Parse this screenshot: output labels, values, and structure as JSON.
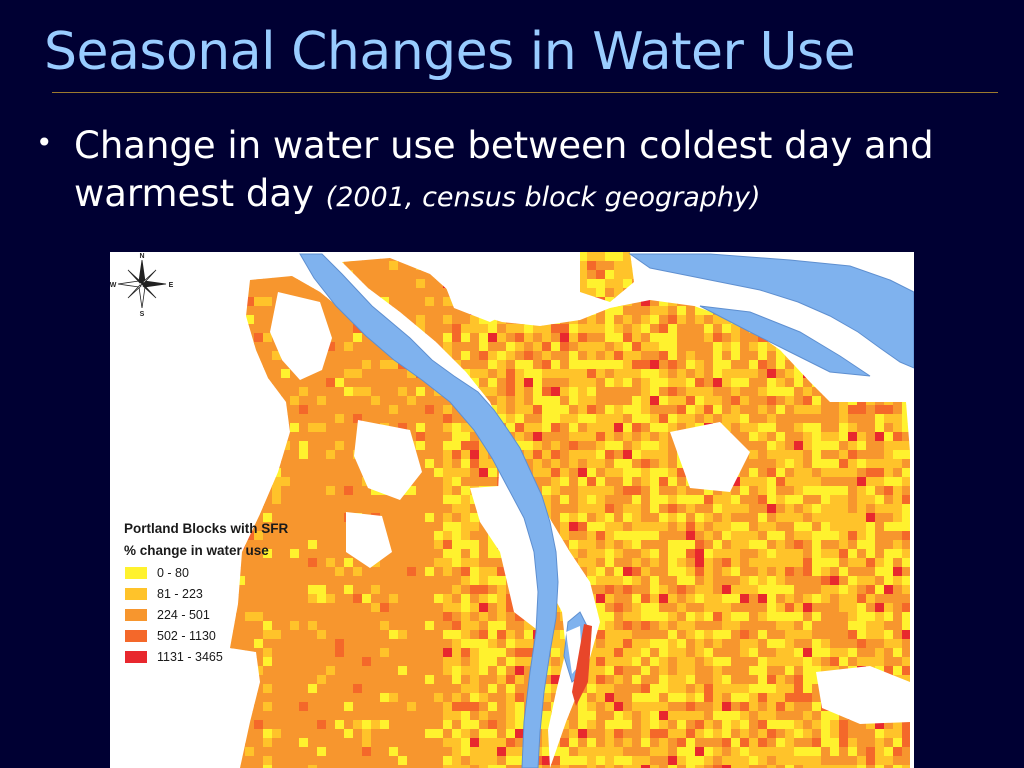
{
  "slide": {
    "title": "Seasonal Changes in Water Use",
    "bullet": {
      "main": "Change in water use between coldest day and warmest day",
      "note": "(2001, census block geography)"
    }
  },
  "map": {
    "legend": {
      "title": "Portland Blocks with SFR",
      "subtitle": "% change in water use",
      "classes": [
        {
          "label": "0 - 80",
          "color": "#FFF22E"
        },
        {
          "label": "81 - 223",
          "color": "#FFC32A"
        },
        {
          "label": "224 - 501",
          "color": "#F7962E"
        },
        {
          "label": "502 - 1130",
          "color": "#F4682A"
        },
        {
          "label": "1131 - 3465",
          "color": "#E8282E"
        }
      ]
    },
    "compass": {
      "n": "N",
      "s": "S",
      "e": "E",
      "w": "W"
    },
    "colors": {
      "water": "#7FB2EE",
      "background": "#FFFFFF"
    }
  }
}
